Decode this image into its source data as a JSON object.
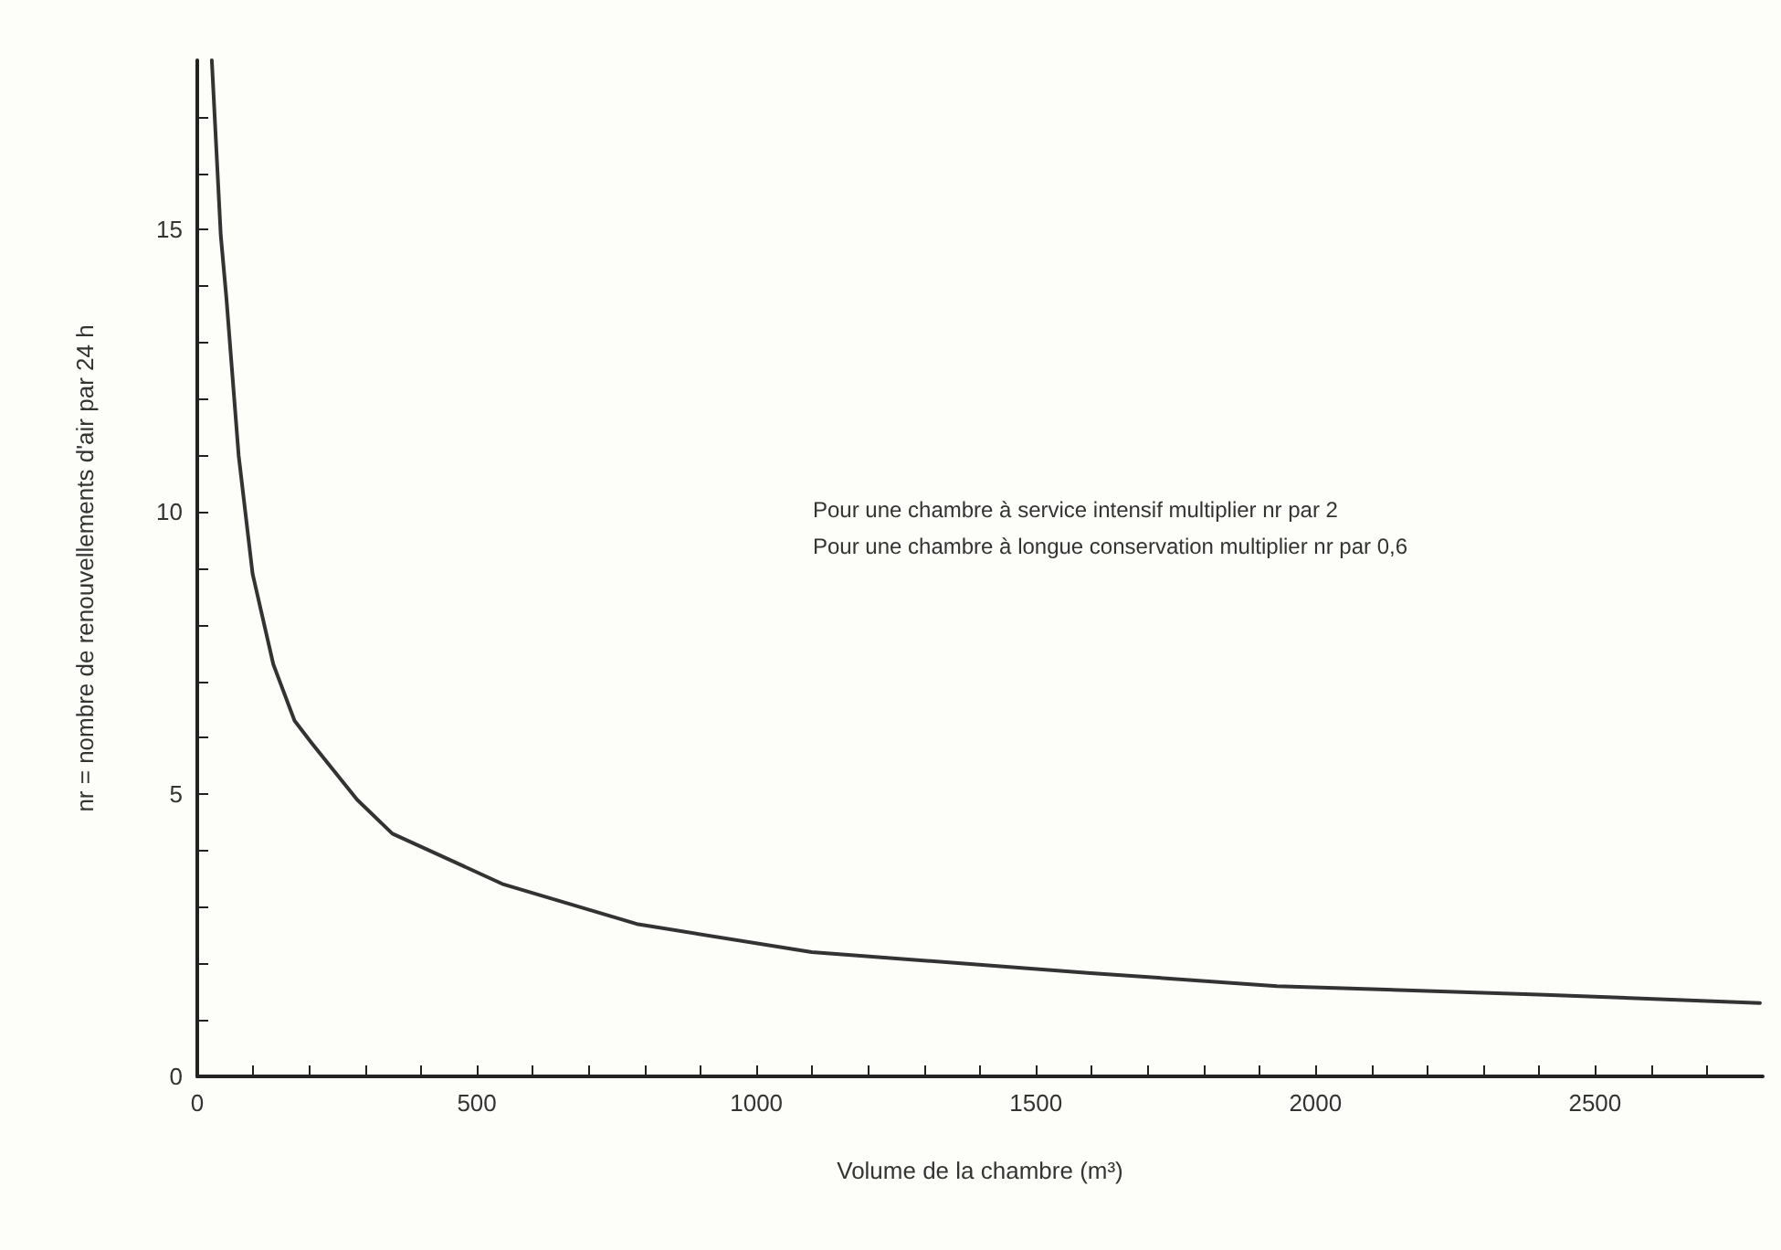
{
  "chart_data": {
    "type": "line",
    "xlabel": "Volume de la chambre (m³)",
    "ylabel": "nr = nombre de renouvellements d'air par 24 h",
    "annotations": [
      "Pour une chambre à service intensif multiplier nr par 2",
      "Pour une chambre à longue conservation multiplier nr par 0,6"
    ],
    "x": [
      26,
      42,
      52,
      74,
      99,
      136,
      174,
      205,
      286,
      349,
      548,
      786,
      1099,
      1598,
      1931,
      2400,
      2795
    ],
    "series": [
      {
        "color": "#333333",
        "values": [
          18.0,
          14.9,
          13.8,
          11.0,
          8.9,
          7.3,
          6.3,
          5.9,
          4.9,
          4.3,
          3.4,
          2.7,
          2.2,
          1.83,
          1.6,
          1.45,
          1.3
        ]
      }
    ],
    "xlim": [
      0,
      2800
    ],
    "xticks": [
      0,
      {
        "value": 100,
        "label": null
      },
      {
        "value": 200,
        "label": null
      },
      {
        "value": 300,
        "label": null
      },
      {
        "value": 400,
        "label": null
      },
      500,
      {
        "value": 600,
        "label": null
      },
      {
        "value": 700,
        "label": null
      },
      {
        "value": 800,
        "label": null
      },
      {
        "value": 900,
        "label": null
      },
      1000,
      {
        "value": 1100,
        "label": null
      },
      {
        "value": 1200,
        "label": null
      },
      {
        "value": 1300,
        "label": null
      },
      {
        "value": 1400,
        "label": null
      },
      1500,
      {
        "value": 1600,
        "label": null
      },
      {
        "value": 1700,
        "label": null
      },
      {
        "value": 1800,
        "label": null
      },
      {
        "value": 1900,
        "label": null
      },
      2000,
      {
        "value": 2100,
        "label": null
      },
      {
        "value": 2200,
        "label": null
      },
      {
        "value": 2300,
        "label": null
      },
      {
        "value": 2400,
        "label": null
      },
      2500,
      {
        "value": 2600,
        "label": null
      },
      {
        "value": 2700,
        "label": null
      }
    ],
    "ylim": [
      0,
      18
    ],
    "yticks": [
      0,
      {
        "value": 1,
        "label": null
      },
      {
        "value": 2,
        "label": null
      },
      {
        "value": 3,
        "label": null
      },
      {
        "value": 4,
        "label": null
      },
      5,
      {
        "value": 6,
        "label": null
      },
      {
        "value": 7,
        "label": null
      },
      {
        "value": 8,
        "label": null
      },
      {
        "value": 9,
        "label": null
      },
      10,
      {
        "value": 11,
        "label": null
      },
      {
        "value": 12,
        "label": null
      },
      {
        "value": 13,
        "label": null
      },
      {
        "value": 14,
        "label": null
      },
      15,
      {
        "value": 16,
        "label": null
      },
      {
        "value": 17,
        "label": null
      }
    ],
    "grid": false,
    "marker": "none",
    "line_style": "solid"
  }
}
